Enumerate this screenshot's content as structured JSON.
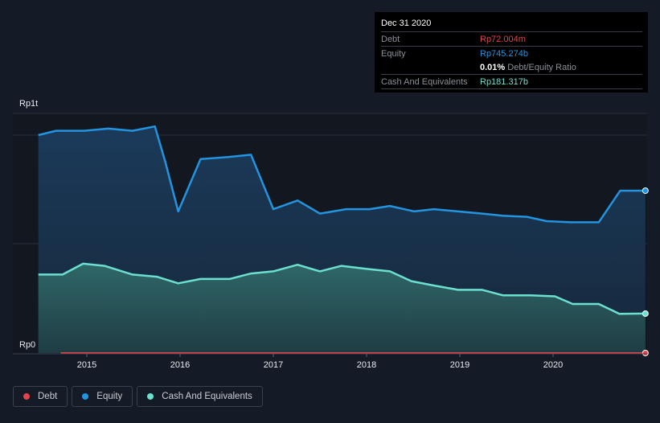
{
  "tooltip": {
    "date": "Dec 31 2020",
    "debt_label": "Debt",
    "debt_value": "Rp72.004m",
    "equity_label": "Equity",
    "equity_value": "Rp745.274b",
    "ratio_value": "0.01%",
    "ratio_label": "Debt/Equity Ratio",
    "cash_label": "Cash And Equivalents",
    "cash_value": "Rp181.317b"
  },
  "legend": [
    {
      "label": "Debt",
      "color": "#e5434c"
    },
    {
      "label": "Equity",
      "color": "#2394df"
    },
    {
      "label": "Cash And Equivalents",
      "color": "#6ce0cf"
    }
  ],
  "chart_data": {
    "type": "area",
    "y_unit": "Rp trillion",
    "ylim": [
      0,
      1.1
    ],
    "y_ticks": [
      {
        "value": 0,
        "label": "Rp0"
      },
      {
        "value": 1,
        "label": "Rp1t"
      }
    ],
    "xlim": [
      2014.48,
      2020.99
    ],
    "x_ticks": [
      {
        "value": 2015,
        "label": "2015"
      },
      {
        "value": 2016,
        "label": "2016"
      },
      {
        "value": 2017,
        "label": "2017"
      },
      {
        "value": 2018,
        "label": "2018"
      },
      {
        "value": 2019,
        "label": "2019"
      },
      {
        "value": 2020,
        "label": "2020"
      }
    ],
    "series": [
      {
        "name": "Equity",
        "color": "#2394df",
        "x": [
          2014.48,
          2014.67,
          2014.97,
          2015.23,
          2015.49,
          2015.73,
          2015.84,
          2015.98,
          2016.22,
          2016.53,
          2016.76,
          2017.0,
          2017.26,
          2017.5,
          2017.78,
          2018.03,
          2018.25,
          2018.51,
          2018.72,
          2018.98,
          2019.24,
          2019.46,
          2019.72,
          2019.93,
          2020.19,
          2020.49,
          2020.72,
          2020.99
        ],
        "values": [
          1.0,
          1.02,
          1.02,
          1.03,
          1.02,
          1.04,
          0.88,
          0.65,
          0.89,
          0.9,
          0.91,
          0.66,
          0.7,
          0.64,
          0.66,
          0.66,
          0.675,
          0.65,
          0.66,
          0.65,
          0.64,
          0.63,
          0.625,
          0.605,
          0.6,
          0.6,
          0.745,
          0.745
        ]
      },
      {
        "name": "Cash And Equivalents",
        "color": "#6ce0cf",
        "x": [
          2014.48,
          2014.74,
          2014.96,
          2015.19,
          2015.49,
          2015.75,
          2015.98,
          2016.22,
          2016.53,
          2016.76,
          2017.0,
          2017.26,
          2017.5,
          2017.73,
          2018.03,
          2018.25,
          2018.48,
          2018.72,
          2018.98,
          2019.24,
          2019.46,
          2019.76,
          2020.02,
          2020.21,
          2020.49,
          2020.71,
          2020.99
        ],
        "values": [
          0.36,
          0.36,
          0.41,
          0.4,
          0.36,
          0.35,
          0.32,
          0.34,
          0.34,
          0.365,
          0.375,
          0.405,
          0.375,
          0.4,
          0.385,
          0.375,
          0.33,
          0.31,
          0.29,
          0.29,
          0.265,
          0.265,
          0.26,
          0.225,
          0.225,
          0.18,
          0.181
        ]
      },
      {
        "name": "Debt",
        "color": "#e5434c",
        "x": [
          2014.72,
          2020.99
        ],
        "values": [
          0.0001,
          0.0001
        ]
      }
    ]
  }
}
